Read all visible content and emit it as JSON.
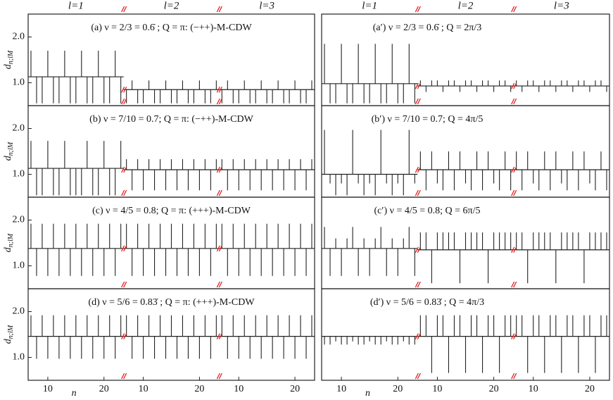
{
  "headers": [
    [
      "l=1",
      "l=2",
      "l=3"
    ],
    [
      "l=1",
      "l=2",
      "l=3"
    ]
  ],
  "chart_data": [
    {
      "type": "stem",
      "title": "(a) ν = 2/3 = 0.6̇ ;  Q = π: (−++)-M-CDW",
      "ylabel": "d",
      "ylabel_sub": "n;lM",
      "ylim": [
        0.5,
        2.5
      ],
      "yticks": [
        {
          "value": 1,
          "label": "1.0"
        },
        {
          "value": 2,
          "label": "2.0"
        }
      ],
      "xlim": [
        6.5,
        23.5
      ],
      "x": [
        7,
        8,
        9,
        10,
        11,
        12,
        13,
        14,
        15,
        16,
        17,
        18,
        19,
        20,
        21,
        22,
        23
      ],
      "segments": [
        {
          "baseline": 1.13,
          "values": [
            1.7,
            0.55,
            0.55,
            1.7,
            0.55,
            0.55,
            1.7,
            0.55,
            0.55,
            1.7,
            0.55,
            0.55,
            1.7,
            0.55,
            0.55,
            1.7,
            0.55
          ]
        },
        {
          "baseline": 0.85,
          "values": [
            0.55,
            1.05,
            0.55,
            0.55,
            1.05,
            0.55,
            0.55,
            1.05,
            0.55,
            0.55,
            1.05,
            0.55,
            0.55,
            1.05,
            0.55,
            0.55,
            1.05
          ]
        },
        {
          "baseline": 0.85,
          "values": [
            0.55,
            1.05,
            0.55,
            0.55,
            1.05,
            0.55,
            0.55,
            1.05,
            0.55,
            0.55,
            1.05,
            0.55,
            0.55,
            1.05,
            0.55,
            0.55,
            1.05
          ]
        }
      ]
    },
    {
      "type": "stem",
      "title": "(a′) ν = 2/3 = 0.6̇ ;  Q = 2π/3",
      "ylim": [
        0.5,
        2.5
      ],
      "xlim": [
        6.5,
        23.5
      ],
      "x": [
        7,
        8,
        9,
        10,
        11,
        12,
        13,
        14,
        15,
        16,
        17,
        18,
        19,
        20,
        21,
        22,
        23
      ],
      "segments": [
        {
          "baseline": 0.98,
          "values": [
            1.85,
            0.55,
            0.55,
            1.85,
            0.55,
            0.55,
            1.85,
            0.55,
            0.55,
            1.85,
            0.55,
            0.55,
            1.85,
            0.55,
            0.55,
            1.85,
            0.55
          ]
        },
        {
          "baseline": 0.93,
          "values": [
            1.05,
            0.8,
            1.05,
            1.05,
            0.8,
            1.05,
            1.05,
            0.8,
            1.05,
            1.05,
            0.8,
            1.05,
            1.05,
            0.8,
            1.05,
            1.05,
            0.8
          ]
        },
        {
          "baseline": 0.93,
          "values": [
            1.05,
            0.8,
            1.05,
            1.05,
            0.8,
            1.05,
            1.05,
            0.8,
            1.05,
            1.05,
            0.8,
            1.05,
            1.05,
            0.8,
            1.05,
            1.05,
            0.8
          ]
        }
      ]
    },
    {
      "type": "stem",
      "title": "(b) ν = 7/10 = 0.7;  Q = π: (−++)-M-CDW",
      "ylabel": "d",
      "ylabel_sub": "n;lM",
      "ylim": [
        0.5,
        2.5
      ],
      "yticks": [
        {
          "value": 1,
          "label": "1.0"
        },
        {
          "value": 2,
          "label": "2.0"
        }
      ],
      "xlim": [
        6.5,
        23.5
      ],
      "x": [
        7,
        8,
        9,
        10,
        11,
        12,
        13,
        14,
        15,
        16,
        17,
        18,
        19,
        20,
        21,
        22,
        23
      ],
      "segments": [
        {
          "baseline": 1.13,
          "values": [
            1.73,
            0.54,
            0.54,
            1.73,
            0.54,
            0.54,
            1.73,
            0.54,
            0.54,
            0.54,
            1.73,
            0.54,
            0.54,
            1.73,
            0.54,
            0.54,
            1.73
          ]
        },
        {
          "baseline": 1.1,
          "values": [
            1.33,
            0.65,
            1.33,
            0.65,
            1.33,
            0.65,
            1.33,
            0.65,
            1.33,
            0.65,
            1.33,
            0.65,
            1.33,
            0.65,
            1.33,
            0.65,
            1.33
          ]
        },
        {
          "baseline": 1.1,
          "values": [
            1.33,
            0.65,
            1.33,
            0.65,
            1.33,
            0.65,
            1.33,
            0.65,
            1.33,
            0.65,
            1.33,
            0.65,
            1.33,
            0.65,
            1.33,
            0.65,
            1.33
          ]
        }
      ]
    },
    {
      "type": "stem",
      "title": "(b′) ν = 7/10 = 0.7;  Q = 4π/5",
      "ylim": [
        0.5,
        2.5
      ],
      "xlim": [
        6.5,
        23.5
      ],
      "x": [
        7,
        8,
        9,
        10,
        11,
        12,
        13,
        14,
        15,
        16,
        17,
        18,
        19,
        20,
        21,
        22,
        23
      ],
      "segments": [
        {
          "baseline": 1.0,
          "values": [
            1.97,
            0.8,
            0.54,
            0.8,
            0.54,
            1.97,
            0.8,
            0.54,
            0.8,
            0.54,
            1.97,
            0.8,
            0.54,
            0.8,
            0.54,
            1.97,
            0.8
          ]
        },
        {
          "baseline": 1.1,
          "values": [
            1.5,
            0.65,
            1.5,
            0.8,
            0.65,
            1.5,
            0.65,
            1.5,
            0.8,
            0.65,
            1.5,
            0.65,
            1.5,
            0.8,
            0.65,
            1.5,
            0.65
          ]
        },
        {
          "baseline": 1.1,
          "values": [
            1.5,
            0.65,
            1.5,
            0.8,
            0.65,
            1.5,
            0.65,
            1.5,
            0.8,
            0.65,
            1.5,
            0.65,
            1.5,
            0.8,
            0.65,
            1.5,
            0.65
          ]
        }
      ]
    },
    {
      "type": "stem",
      "title": "(c) ν = 4/5 = 0.8;  Q = π: (+++)-M-CDW",
      "ylabel": "d",
      "ylabel_sub": "n;lM",
      "ylim": [
        0.5,
        2.5
      ],
      "yticks": [
        {
          "value": 1,
          "label": "1.0"
        },
        {
          "value": 2,
          "label": "2.0"
        }
      ],
      "xlim": [
        6.5,
        23.5
      ],
      "x": [
        7,
        8,
        9,
        10,
        11,
        12,
        13,
        14,
        15,
        16,
        17,
        18,
        19,
        20,
        21,
        22,
        23
      ],
      "segments": [
        {
          "baseline": 1.38,
          "values": [
            1.92,
            0.78,
            1.92,
            0.78,
            1.92,
            0.78,
            1.92,
            0.78,
            1.92,
            0.78,
            1.92,
            0.78,
            1.92,
            0.78,
            1.92,
            0.78,
            1.92
          ]
        },
        {
          "baseline": 1.38,
          "values": [
            1.92,
            0.78,
            1.92,
            0.78,
            1.92,
            0.78,
            1.92,
            0.78,
            1.92,
            0.78,
            1.92,
            0.78,
            1.92,
            0.78,
            1.92,
            0.78,
            1.92
          ]
        },
        {
          "baseline": 1.38,
          "values": [
            1.92,
            0.78,
            1.92,
            0.78,
            1.92,
            0.78,
            1.92,
            0.78,
            1.92,
            0.78,
            1.92,
            0.78,
            1.92,
            0.78,
            1.92,
            0.78,
            1.92
          ]
        }
      ]
    },
    {
      "type": "stem",
      "title": "(c′) ν = 4/5 = 0.8;  Q = 6π/5",
      "ylim": [
        0.5,
        2.5
      ],
      "xlim": [
        6.5,
        23.5
      ],
      "x": [
        7,
        8,
        9,
        10,
        11,
        12,
        13,
        14,
        15,
        16,
        17,
        18,
        19,
        20,
        21,
        22,
        23
      ],
      "segments": [
        {
          "baseline": 1.38,
          "values": [
            1.85,
            0.78,
            1.6,
            0.78,
            1.6,
            1.85,
            0.78,
            1.6,
            0.78,
            1.6,
            1.85,
            0.78,
            1.6,
            0.78,
            1.6,
            1.85,
            0.78
          ]
        },
        {
          "baseline": 1.35,
          "values": [
            1.73,
            1.73,
            0.62,
            1.73,
            1.73,
            1.73,
            1.73,
            0.62,
            1.73,
            1.73,
            1.73,
            1.73,
            0.62,
            1.73,
            1.73,
            1.73,
            1.73
          ]
        },
        {
          "baseline": 1.35,
          "values": [
            1.73,
            1.73,
            0.62,
            1.73,
            1.73,
            1.73,
            1.73,
            0.62,
            1.73,
            1.73,
            1.73,
            1.73,
            0.62,
            1.73,
            1.73,
            1.73,
            1.73
          ]
        }
      ]
    },
    {
      "type": "stem",
      "title": "(d) ν = 5/6 = 0.83̇ ;  Q = π: (+++)-M-CDW",
      "ylabel": "d",
      "ylabel_sub": "n;lM",
      "ylim": [
        0.5,
        2.5
      ],
      "yticks": [
        {
          "value": 1,
          "label": "1.0"
        },
        {
          "value": 2,
          "label": "2.0"
        }
      ],
      "xlim": [
        6.5,
        23.5
      ],
      "xticks": [
        10,
        20
      ],
      "xlabel": "n",
      "x": [
        7,
        8,
        9,
        10,
        11,
        12,
        13,
        14,
        15,
        16,
        17,
        18,
        19,
        20,
        21,
        22,
        23
      ],
      "segments": [
        {
          "baseline": 1.46,
          "values": [
            1.92,
            0.97,
            1.92,
            0.97,
            1.92,
            0.97,
            1.92,
            0.97,
            1.92,
            0.97,
            1.92,
            0.97,
            1.92,
            0.97,
            1.92,
            0.97,
            1.92
          ]
        },
        {
          "baseline": 1.46,
          "values": [
            1.92,
            0.97,
            1.92,
            0.97,
            1.92,
            0.97,
            1.92,
            0.97,
            1.92,
            0.97,
            1.92,
            0.97,
            1.92,
            0.97,
            1.92,
            0.97,
            1.92
          ]
        },
        {
          "baseline": 1.46,
          "values": [
            1.92,
            0.97,
            1.92,
            0.97,
            1.92,
            0.97,
            1.92,
            0.97,
            1.92,
            0.97,
            1.92,
            0.97,
            1.92,
            0.97,
            1.92,
            0.97,
            1.92
          ]
        }
      ]
    },
    {
      "type": "stem",
      "title": "(d′) ν = 5/6 = 0.83̇ ;  Q = 4π/3",
      "ylim": [
        0.5,
        2.5
      ],
      "xlim": [
        6.5,
        23.5
      ],
      "xticks": [
        10,
        20
      ],
      "xlabel": "n",
      "x": [
        7,
        8,
        9,
        10,
        11,
        12,
        13,
        14,
        15,
        16,
        17,
        18,
        19,
        20,
        21,
        22,
        23
      ],
      "segments": [
        {
          "baseline": 1.46,
          "values": [
            1.28,
            1.28,
            1.35,
            1.28,
            1.28,
            1.35,
            1.28,
            1.28,
            1.35,
            1.28,
            1.28,
            1.35,
            1.28,
            1.28,
            1.35,
            1.28,
            1.28
          ]
        },
        {
          "baseline": 1.46,
          "values": [
            1.92,
            1.92,
            0.66,
            1.92,
            1.92,
            0.66,
            1.92,
            1.92,
            0.66,
            1.92,
            1.92,
            0.66,
            1.92,
            1.92,
            0.66,
            1.92,
            1.92
          ]
        },
        {
          "baseline": 1.46,
          "values": [
            1.92,
            1.92,
            0.66,
            1.92,
            1.92,
            0.66,
            1.92,
            1.92,
            0.66,
            1.92,
            1.92,
            0.66,
            1.92,
            1.92,
            0.66,
            1.92,
            1.92
          ]
        }
      ]
    }
  ]
}
